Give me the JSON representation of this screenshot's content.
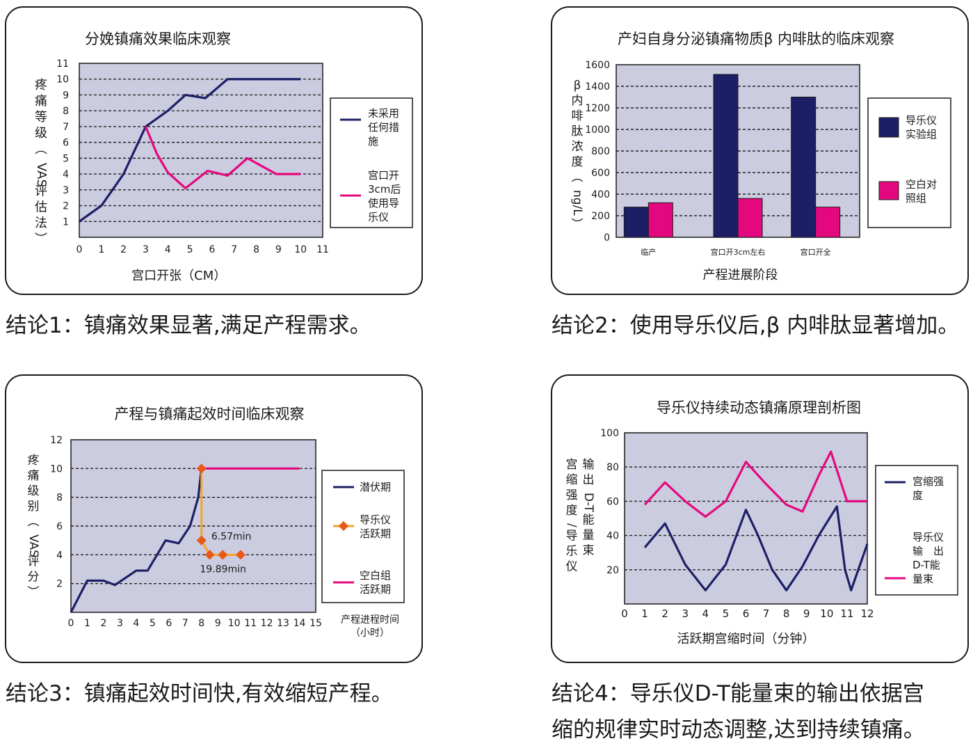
{
  "conclusions": {
    "c1": "结论1：镇痛效果显著,满足产程需求。",
    "c2": "结论2：使用导乐仪后,β 内啡肽显著增加。",
    "c3": "结论3：镇痛起效时间快,有效缩短产程。",
    "c4_line1": "结论4：导乐仪D-T能量束的输出依据宫",
    "c4_line2": "缩的规律实时动态调整,达到持续镇痛。"
  },
  "colors": {
    "navy": "#1c1f66",
    "magenta": "#e4087e",
    "orange": "#f5a623",
    "marker": "#e8591a",
    "plot_bg": "#cccce0"
  },
  "chart_data": [
    {
      "type": "line",
      "title": "分娩镇痛效果临床观察",
      "xlabel": "宫口开张（CM）",
      "ylabel": "疼痛等级（VAS评估法）",
      "xlim": [
        0,
        11
      ],
      "ylim": [
        0,
        11
      ],
      "xticks": [
        "0",
        "1",
        "2",
        "3",
        "4",
        "5",
        "6",
        "7",
        "8",
        "9",
        "10",
        "11"
      ],
      "yticks": [
        "1",
        "2",
        "3",
        "4",
        "5",
        "6",
        "7",
        "8",
        "9",
        "10",
        "11"
      ],
      "grid": true,
      "legend_position": "right",
      "series": [
        {
          "name": "未采用任何措施",
          "legend": [
            "未采用",
            "任何措",
            "施"
          ],
          "color": "#1c1f66",
          "x": [
            0,
            1,
            1.6,
            2,
            3,
            4,
            4.8,
            5.7,
            6.7,
            10
          ],
          "y": [
            1,
            2,
            3.2,
            4,
            7,
            8,
            9,
            8.8,
            10,
            10
          ]
        },
        {
          "name": "宫口开3cm后使用导乐仪",
          "legend": [
            "宫口开",
            "3cm后",
            "使用导",
            "乐仪"
          ],
          "color": "#e4087e",
          "x": [
            3,
            3.5,
            4,
            4.8,
            5.8,
            6.7,
            7.6,
            8.9,
            10
          ],
          "y": [
            7,
            5.3,
            4.1,
            3.1,
            4.2,
            3.9,
            5,
            4,
            4
          ]
        }
      ]
    },
    {
      "type": "bar",
      "title": "产妇自身分泌镇痛物质β 内啡肽的临床观察",
      "xlabel": "产程进展阶段",
      "ylabel": "β内啡肽浓度（ng/L）",
      "ylim": [
        0,
        1600
      ],
      "yticks": [
        "0",
        "200",
        "400",
        "600",
        "800",
        "1000",
        "1200",
        "1400",
        "1600"
      ],
      "categories": [
        "临产",
        "宫口开3cm左右",
        "宫口开全"
      ],
      "grid": true,
      "legend_position": "right",
      "series": [
        {
          "name": "导乐仪实验组",
          "legend": [
            "导乐仪",
            "实验组"
          ],
          "color": "#1c1f66",
          "values": [
            280,
            1510,
            1300
          ]
        },
        {
          "name": "空白对照组",
          "legend": [
            "空白对",
            "照组"
          ],
          "color": "#e4087e",
          "values": [
            320,
            360,
            280
          ]
        }
      ]
    },
    {
      "type": "line",
      "title": "产程与镇痛起效时间临床观察",
      "xlabel": "产程进程时间（小时）",
      "ylabel": "疼痛级别（VAS评分）",
      "xlim": [
        0,
        15
      ],
      "ylim": [
        0,
        12
      ],
      "xticks": [
        "0",
        "1",
        "2",
        "3",
        "4",
        "5",
        "6",
        "7",
        "8",
        "9",
        "10",
        "11",
        "12",
        "13",
        "14",
        "15"
      ],
      "yticks": [
        "2",
        "4",
        "6",
        "8",
        "10",
        "12"
      ],
      "grid": true,
      "legend_position": "right",
      "annotations": [
        "6.57min",
        "19.89min"
      ],
      "series": [
        {
          "name": "潜伏期",
          "legend": [
            "潜伏期"
          ],
          "color": "#1c1f66",
          "x": [
            0,
            1,
            2,
            2.7,
            4,
            4.7,
            5.8,
            6.6,
            7.3,
            7.8,
            8
          ],
          "y": [
            0,
            2.2,
            2.2,
            1.9,
            2.9,
            2.9,
            5,
            4.8,
            6,
            8,
            10
          ]
        },
        {
          "name": "导乐仪活跃期",
          "legend": [
            "导乐仪",
            "活跃期"
          ],
          "color": "#f5a623",
          "x": [
            8,
            8,
            8.5,
            9.3,
            10.4
          ],
          "y": [
            10,
            5,
            4,
            4,
            4
          ]
        },
        {
          "name": "空白组活跃期",
          "legend": [
            "空白组",
            "活跃期"
          ],
          "color": "#e4087e",
          "x": [
            8,
            14
          ],
          "y": [
            10,
            10
          ]
        }
      ]
    },
    {
      "type": "line",
      "title": "导乐仪持续动态镇痛原理剖析图",
      "xlabel": "活跃期宫缩时间（分钟）",
      "ylabel": "输出D-T能量束 宫缩强度/导乐仪",
      "ylabel_lines": [
        "输出D-T能量束",
        "宫缩强度/导乐仪"
      ],
      "xlim": [
        0,
        12
      ],
      "ylim": [
        0,
        100
      ],
      "xticks": [
        "0",
        "1",
        "2",
        "3",
        "4",
        "5",
        "6",
        "7",
        "8",
        "9",
        "10",
        "11",
        "12"
      ],
      "yticks": [
        "20",
        "40",
        "60",
        "80",
        "100"
      ],
      "grid": true,
      "legend_position": "right",
      "series": [
        {
          "name": "宫缩强度",
          "legend": [
            "宫缩强",
            "度"
          ],
          "color": "#1c1f66",
          "x": [
            1,
            2,
            3,
            4,
            5,
            6,
            6.6,
            7.3,
            8,
            8.8,
            9.6,
            10.5,
            10.9,
            11.2,
            12
          ],
          "y": [
            33,
            47,
            23,
            8,
            23,
            55,
            40,
            20,
            8,
            22,
            40,
            57,
            20,
            8,
            35
          ]
        },
        {
          "name": "导乐仪输出D-T能量束",
          "legend": [
            "导乐仪",
            "输　出",
            "D-T能",
            "量束"
          ],
          "color": "#e4087e",
          "x": [
            1,
            2,
            3,
            4,
            5,
            6,
            7,
            8,
            8.8,
            9.6,
            10.2,
            11,
            12
          ],
          "y": [
            58,
            71,
            60,
            51,
            60,
            83,
            70,
            58,
            54,
            75,
            89,
            60,
            60
          ]
        }
      ]
    }
  ]
}
